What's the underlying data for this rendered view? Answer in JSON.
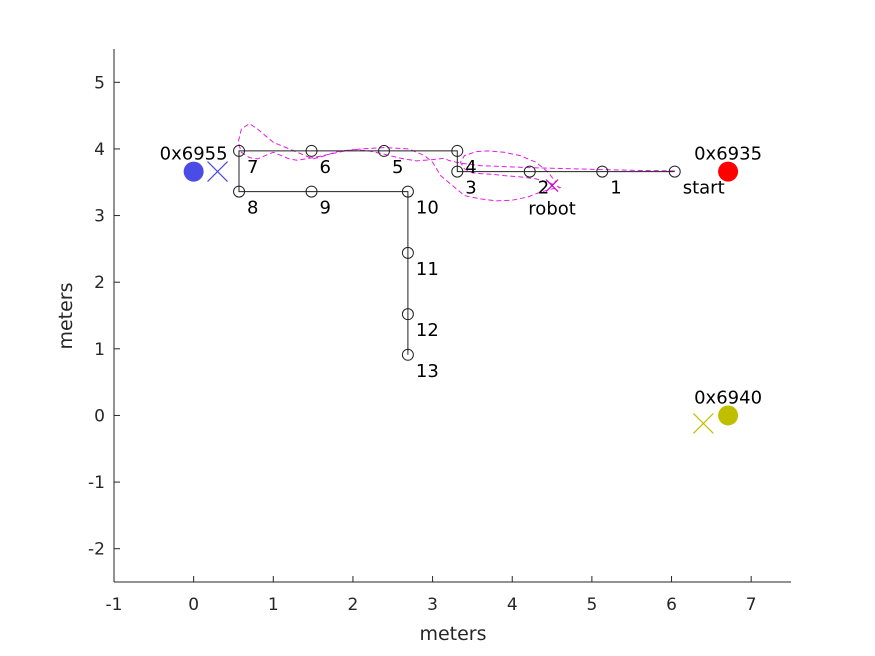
{
  "chart_data": {
    "type": "scatter",
    "title": "",
    "xlabel": "meters",
    "ylabel": "meters",
    "xlim": [
      -1,
      7.5
    ],
    "ylim": [
      -2.5,
      5.5
    ],
    "xticks": [
      -1,
      0,
      1,
      2,
      3,
      4,
      5,
      6,
      7
    ],
    "yticks": [
      -2,
      -1,
      0,
      1,
      2,
      3,
      4,
      5
    ],
    "grid": false,
    "waypoints": [
      {
        "label": "start",
        "x": 6.04,
        "y": 3.66
      },
      {
        "label": "1",
        "x": 5.13,
        "y": 3.66
      },
      {
        "label": "2",
        "x": 4.22,
        "y": 3.66
      },
      {
        "label": "3",
        "x": 3.31,
        "y": 3.66
      },
      {
        "label": "4",
        "x": 3.31,
        "y": 3.97
      },
      {
        "label": "5",
        "x": 2.39,
        "y": 3.97
      },
      {
        "label": "6",
        "x": 1.48,
        "y": 3.97
      },
      {
        "label": "7",
        "x": 0.57,
        "y": 3.97
      },
      {
        "label": "8",
        "x": 0.57,
        "y": 3.36
      },
      {
        "label": "9",
        "x": 1.48,
        "y": 3.36
      },
      {
        "label": "10",
        "x": 2.69,
        "y": 3.36
      },
      {
        "label": "11",
        "x": 2.69,
        "y": 2.44
      },
      {
        "label": "12",
        "x": 2.69,
        "y": 1.52
      },
      {
        "label": "13",
        "x": 2.69,
        "y": 0.91
      }
    ],
    "anchors": [
      {
        "label": "0x6935",
        "x": 6.71,
        "y": 3.66,
        "color": "#ff0000"
      },
      {
        "label": "0x6955",
        "x": 0.0,
        "y": 3.66,
        "color": "#4b4be6"
      },
      {
        "label": "0x6940",
        "x": 6.71,
        "y": 0.0,
        "color": "#bfbf00"
      }
    ],
    "estimates": [
      {
        "x": 0.3,
        "y": 3.66,
        "color": "#4b4be6"
      },
      {
        "x": 6.4,
        "y": -0.12,
        "color": "#bfbf00"
      }
    ],
    "robot": {
      "label": "robot",
      "x": 4.5,
      "y": 3.45,
      "color": "#cc00cc"
    },
    "trajectory": {
      "color": "#e619e6",
      "x": [
        6.04,
        5.5,
        4.8,
        4.2,
        3.6,
        3.4,
        3.3,
        3.2,
        3.15,
        3.0,
        2.8,
        2.6,
        2.4,
        2.2,
        2.0,
        1.8,
        1.6,
        1.5,
        1.4,
        1.2,
        1.0,
        0.9,
        0.8,
        0.7,
        0.6,
        0.56,
        0.6,
        0.7,
        0.8,
        0.9,
        1.0,
        1.1,
        1.2,
        1.3,
        1.5,
        1.7,
        1.9,
        2.1,
        2.4,
        2.7,
        2.9,
        3.0,
        3.05,
        3.1,
        3.2,
        3.3,
        3.4,
        3.6,
        3.8,
        4.0,
        4.2,
        4.35,
        4.5,
        4.6,
        4.55,
        4.45,
        4.3,
        4.1,
        3.9,
        3.75,
        3.6,
        3.5,
        3.4,
        3.35,
        3.4,
        3.55,
        3.7,
        3.9,
        4.1,
        4.3,
        4.45,
        4.55
      ],
      "y": [
        3.67,
        3.68,
        3.7,
        3.72,
        3.75,
        3.78,
        3.8,
        3.83,
        3.86,
        3.84,
        3.82,
        3.86,
        3.92,
        3.97,
        3.99,
        3.96,
        3.88,
        3.85,
        3.9,
        4.0,
        4.1,
        4.2,
        4.3,
        4.38,
        4.3,
        4.1,
        3.95,
        3.87,
        3.85,
        3.9,
        3.95,
        3.9,
        3.85,
        3.83,
        3.87,
        3.92,
        3.97,
        4.0,
        4.02,
        4.0,
        3.9,
        3.8,
        3.7,
        3.6,
        3.5,
        3.4,
        3.3,
        3.25,
        3.22,
        3.23,
        3.28,
        3.35,
        3.4,
        3.42,
        3.45,
        3.5,
        3.55,
        3.58,
        3.6,
        3.62,
        3.63,
        3.64,
        3.7,
        3.8,
        3.9,
        3.96,
        3.97,
        3.95,
        3.9,
        3.8,
        3.65,
        3.5
      ]
    }
  }
}
